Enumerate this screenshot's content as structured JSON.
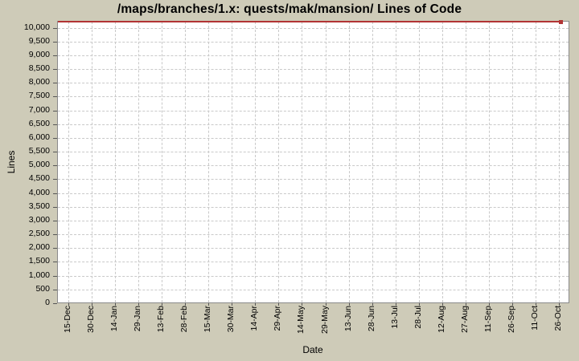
{
  "title": "/maps/branches/1.x: quests/mak/mansion/ Lines of Code",
  "colors": {
    "background": "#cecbb8",
    "plot_background": "#ffffff",
    "grid": "#c9c9c9",
    "plot_border": "#8a8a8a",
    "series_red": "#b23434",
    "text": "#000000"
  },
  "chart_data": {
    "type": "line",
    "title": "/maps/branches/1.x: quests/mak/mansion/ Lines of Code",
    "xlabel": "Date",
    "ylabel": "Lines",
    "grid": true,
    "legend_position": "none",
    "ylim": [
      0,
      10250
    ],
    "y_tick_labels": [
      "0",
      "500",
      "1,000",
      "1,500",
      "2,000",
      "2,500",
      "3,000",
      "3,500",
      "4,000",
      "4,500",
      "5,000",
      "5,500",
      "6,000",
      "6,500",
      "7,000",
      "7,500",
      "8,000",
      "8,500",
      "9,000",
      "9,500",
      "10,000"
    ],
    "x_tick_labels": [
      "15-Dec",
      "30-Dec",
      "14-Jan",
      "29-Jan",
      "13-Feb",
      "28-Feb",
      "15-Mar",
      "30-Mar",
      "14-Apr",
      "29-Apr",
      "14-May",
      "29-May",
      "13-Jun",
      "28-Jun",
      "13-Jul",
      "28-Jul",
      "12-Aug",
      "27-Aug",
      "11-Sep",
      "26-Sep",
      "11-Oct",
      "26-Oct"
    ],
    "series": [
      {
        "name": "lines of code",
        "color": "#b23434",
        "marker": "small square at last data point",
        "x": [
          "start of plot (before 15-Dec)",
          "26-Oct"
        ],
        "values": [
          10250,
          10250
        ],
        "note": "flat horizontal line along the very top edge of the plot, slightly above the 10,000 gridline (~10,250 estimated); no other data visible"
      }
    ]
  }
}
